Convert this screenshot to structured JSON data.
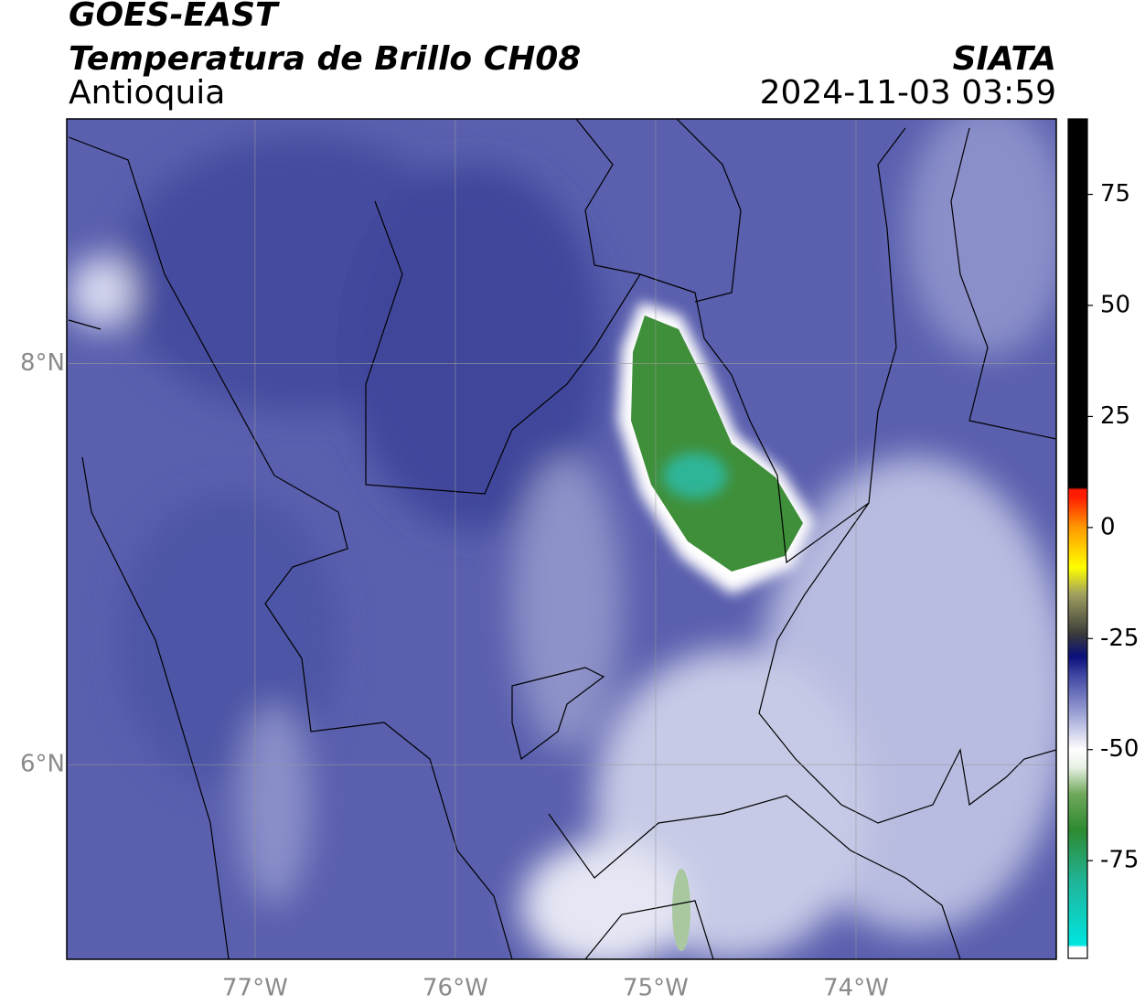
{
  "header": {
    "title": "GOES-EAST",
    "subtitle": "Temperatura de Brillo CH08",
    "region": "Antioquia",
    "agency": "SIATA",
    "timestamp": "2024-11-03 03:59"
  },
  "map": {
    "xlim": [
      -77.94,
      -73.0
    ],
    "ylim": [
      5.03,
      9.22
    ],
    "xticks": [
      {
        "value": -77,
        "label": "77°W"
      },
      {
        "value": -76,
        "label": "76°W"
      },
      {
        "value": -75,
        "label": "75°W"
      },
      {
        "value": -74,
        "label": "74°W"
      }
    ],
    "yticks": [
      {
        "value": 8,
        "label": "8°N"
      },
      {
        "value": 6,
        "label": "6°N"
      }
    ]
  },
  "colorbar": {
    "lim": [
      -97,
      92
    ],
    "ticks": [
      75,
      50,
      25,
      0,
      -25,
      -50,
      -75
    ],
    "stops": [
      {
        "value": -97,
        "color": "#ffffff"
      },
      {
        "value": -94.5,
        "color": "#ffffff"
      },
      {
        "value": -94,
        "color": "#00e5e0"
      },
      {
        "value": -80,
        "color": "#1fb59a"
      },
      {
        "value": -68,
        "color": "#2e8a30"
      },
      {
        "value": -60,
        "color": "#6fa85a"
      },
      {
        "value": -54,
        "color": "#e8f0e4"
      },
      {
        "value": -50,
        "color": "#ffffff"
      },
      {
        "value": -42,
        "color": "#9ea3d6"
      },
      {
        "value": -33,
        "color": "#3c44a0"
      },
      {
        "value": -29,
        "color": "#0a0f7a"
      },
      {
        "value": -24,
        "color": "#3a3a3a"
      },
      {
        "value": -15,
        "color": "#a0a060"
      },
      {
        "value": -9,
        "color": "#ffff00"
      },
      {
        "value": 0,
        "color": "#ff9900"
      },
      {
        "value": 7,
        "color": "#ff1a00"
      },
      {
        "value": 8.5,
        "color": "#ff1a00"
      },
      {
        "value": 9,
        "color": "#000000"
      },
      {
        "value": 92,
        "color": "#000000"
      }
    ]
  }
}
